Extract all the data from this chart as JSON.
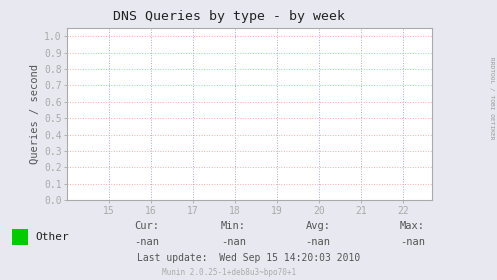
{
  "title": "DNS Queries by type - by week",
  "ylabel": "Queries / second",
  "xlim": [
    14.0,
    22.7
  ],
  "ylim": [
    0.0,
    1.05
  ],
  "xticks": [
    15,
    16,
    17,
    18,
    19,
    20,
    21,
    22
  ],
  "yticks": [
    0.0,
    0.1,
    0.2,
    0.3,
    0.4,
    0.5,
    0.6,
    0.7,
    0.8,
    0.9,
    1.0
  ],
  "bg_color": "#e8e8f0",
  "plot_bg_color": "#ffffff",
  "grid_color": "#ffaaaa",
  "grid_color2": "#aaaacc",
  "axis_color": "#aaaaaa",
  "title_color": "#222222",
  "legend_label": "Other",
  "legend_color": "#00cc00",
  "cur_val": "-nan",
  "min_val": "-nan",
  "avg_val": "-nan",
  "max_val": "-nan",
  "last_update": "Last update:  Wed Sep 15 14:20:03 2010",
  "munin_version": "Munin 2.0.25-1+deb8u3~bpo70+1",
  "rrdtool_label": "RRDTOOL / TOBI OETIKER",
  "label_color": "#999999",
  "stats_label_color": "#555555",
  "munin_color": "#aaaaaa"
}
